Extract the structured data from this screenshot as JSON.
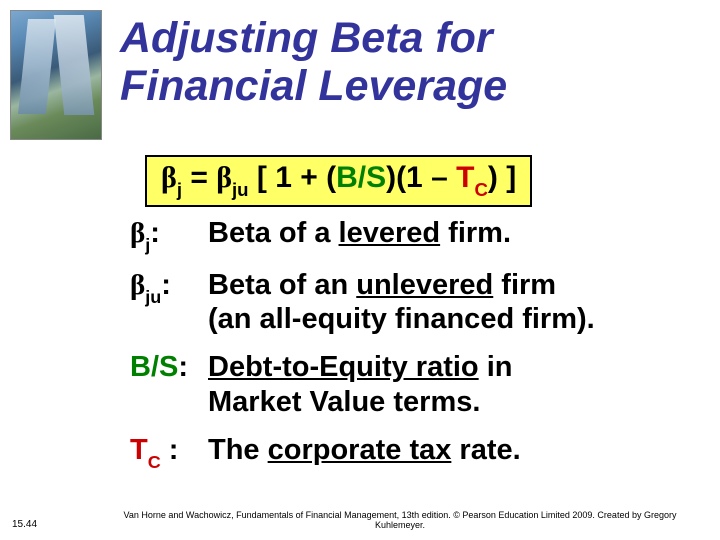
{
  "title_line1": "Adjusting Beta for",
  "title_line2": "Financial Leverage",
  "formula": {
    "beta": "β",
    "sub_j": "j",
    "eq": " = ",
    "sub_ju": "ju",
    "open": " [ 1 + (",
    "bs": "B/S",
    "mid": ")(1 – ",
    "t": "T",
    "sub_c": "C",
    "close": ") ]"
  },
  "defs": {
    "bj_term_beta": "β",
    "bj_term_sub": "j",
    "bj_colon": ":",
    "bj_desc_pre": "Beta of a ",
    "bj_desc_u": "levered",
    "bj_desc_post": " firm.",
    "bju_term_beta": "β",
    "bju_term_sub": "ju",
    "bju_colon": ":",
    "bju_desc_pre": "Beta of an ",
    "bju_desc_u": "unlevered",
    "bju_desc_post": " firm",
    "bju_desc_line2": "(an all-equity financed firm).",
    "bs_term": "B/S",
    "bs_colon": ":",
    "bs_desc_u": "Debt-to-Equity ratio",
    "bs_desc_post": " in",
    "bs_desc_line2": "Market Value terms.",
    "tc_t": "T",
    "tc_sub": "C",
    "tc_colon": " :",
    "tc_desc_pre": "The ",
    "tc_desc_u": "corporate tax",
    "tc_desc_post": " rate."
  },
  "slide_number": "15.44",
  "footer_text": "Van Horne and Wachowicz, Fundamentals of Financial Management, 13th edition. © Pearson Education Limited 2009. Created by Gregory Kuhlemeyer.",
  "colors": {
    "title": "#33339c",
    "highlight_bg": "#ffff66",
    "green": "#008000",
    "red": "#cc0000",
    "text": "#000000",
    "bg": "#ffffff"
  }
}
